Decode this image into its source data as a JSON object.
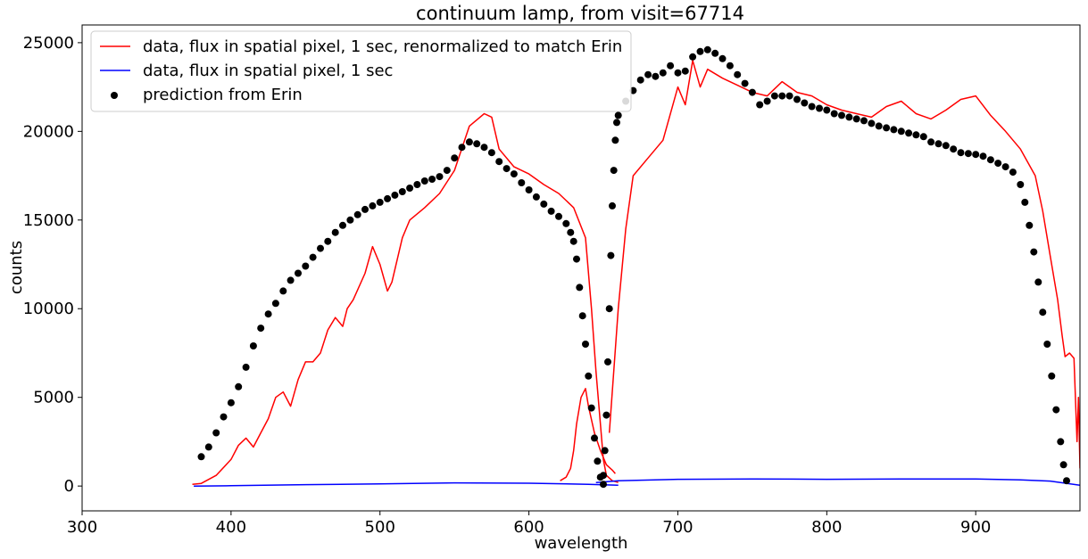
{
  "chart_data": {
    "type": "line",
    "title": "continuum lamp, from visit=67714",
    "xlabel": "wavelength",
    "ylabel": "counts",
    "xlim": [
      300,
      970
    ],
    "ylim": [
      -1400,
      26000
    ],
    "xticks": [
      300,
      400,
      500,
      600,
      700,
      800,
      900
    ],
    "yticks": [
      0,
      5000,
      10000,
      15000,
      20000,
      25000
    ],
    "grid": false,
    "legend_position": "top-left",
    "series": [
      {
        "name": "data, flux in spatial pixel, 1 sec, renormalized to match Erin",
        "style": "line",
        "color": "#ff0000",
        "segments": [
          [
            [
              374,
              100
            ],
            [
              380,
              150
            ],
            [
              390,
              600
            ],
            [
              400,
              1500
            ],
            [
              405,
              2300
            ],
            [
              410,
              2700
            ],
            [
              415,
              2200
            ],
            [
              420,
              3000
            ],
            [
              425,
              3800
            ],
            [
              430,
              5000
            ],
            [
              435,
              5300
            ],
            [
              440,
              4500
            ],
            [
              445,
              6000
            ],
            [
              450,
              7000
            ],
            [
              455,
              7000
            ],
            [
              460,
              7500
            ],
            [
              465,
              8800
            ],
            [
              470,
              9500
            ],
            [
              475,
              9000
            ],
            [
              478,
              10000
            ],
            [
              482,
              10500
            ],
            [
              490,
              12000
            ],
            [
              495,
              13500
            ],
            [
              500,
              12500
            ],
            [
              505,
              11000
            ],
            [
              508,
              11500
            ],
            [
              515,
              14000
            ],
            [
              520,
              15000
            ],
            [
              530,
              15700
            ],
            [
              540,
              16500
            ],
            [
              550,
              17800
            ],
            [
              560,
              20300
            ],
            [
              570,
              21000
            ],
            [
              575,
              20800
            ],
            [
              580,
              19000
            ],
            [
              590,
              18000
            ],
            [
              600,
              17600
            ],
            [
              610,
              17000
            ],
            [
              620,
              16500
            ],
            [
              630,
              15700
            ],
            [
              638,
              14000
            ],
            [
              642,
              10000
            ],
            [
              645,
              6500
            ],
            [
              648,
              3500
            ],
            [
              650,
              1500
            ],
            [
              652,
              600
            ],
            [
              656,
              300
            ],
            [
              660,
              200
            ]
          ],
          [
            [
              621,
              300
            ],
            [
              625,
              500
            ],
            [
              628,
              1000
            ],
            [
              630,
              2000
            ],
            [
              632,
              3500
            ],
            [
              635,
              5000
            ],
            [
              638,
              5500
            ],
            [
              640,
              4500
            ],
            [
              644,
              3000
            ],
            [
              648,
              2000
            ],
            [
              652,
              1200
            ],
            [
              656,
              900
            ],
            [
              658,
              700
            ]
          ],
          [
            [
              654,
              3000
            ],
            [
              660,
              10000
            ],
            [
              665,
              14500
            ],
            [
              670,
              17500
            ],
            [
              680,
              18500
            ],
            [
              690,
              19500
            ],
            [
              700,
              22500
            ],
            [
              705,
              21500
            ],
            [
              710,
              24000
            ],
            [
              715,
              22500
            ],
            [
              720,
              23500
            ],
            [
              730,
              23000
            ],
            [
              740,
              22600
            ],
            [
              750,
              22200
            ],
            [
              760,
              22000
            ],
            [
              770,
              22800
            ],
            [
              780,
              22200
            ],
            [
              790,
              22000
            ],
            [
              800,
              21500
            ],
            [
              810,
              21200
            ],
            [
              820,
              21000
            ],
            [
              830,
              20800
            ],
            [
              840,
              21400
            ],
            [
              850,
              21700
            ],
            [
              860,
              21000
            ],
            [
              870,
              20700
            ],
            [
              880,
              21200
            ],
            [
              890,
              21800
            ],
            [
              900,
              22000
            ],
            [
              910,
              20900
            ],
            [
              920,
              20000
            ],
            [
              930,
              19000
            ],
            [
              940,
              17500
            ],
            [
              945,
              15500
            ],
            [
              950,
              13000
            ],
            [
              955,
              10500
            ],
            [
              958,
              8500
            ],
            [
              960,
              7300
            ],
            [
              963,
              7500
            ],
            [
              966,
              7200
            ],
            [
              968,
              2500
            ],
            [
              969,
              5000
            ],
            [
              970,
              1000
            ]
          ]
        ]
      },
      {
        "name": "data, flux in spatial pixel, 1 sec",
        "style": "line",
        "color": "#0000ff",
        "segments": [
          [
            [
              375,
              0
            ],
            [
              400,
              20
            ],
            [
              450,
              80
            ],
            [
              500,
              120
            ],
            [
              550,
              180
            ],
            [
              600,
              160
            ],
            [
              640,
              100
            ],
            [
              660,
              50
            ]
          ],
          [
            [
              645,
              200
            ],
            [
              660,
              300
            ],
            [
              700,
              380
            ],
            [
              750,
              400
            ],
            [
              800,
              380
            ],
            [
              850,
              400
            ],
            [
              900,
              400
            ],
            [
              930,
              350
            ],
            [
              950,
              280
            ],
            [
              970,
              50
            ]
          ]
        ]
      },
      {
        "name": "prediction from Erin",
        "style": "scatter",
        "color": "#000000",
        "points": [
          [
            380,
            1650
          ],
          [
            385,
            2200
          ],
          [
            390,
            3000
          ],
          [
            395,
            3900
          ],
          [
            400,
            4700
          ],
          [
            405,
            5600
          ],
          [
            410,
            6700
          ],
          [
            415,
            7900
          ],
          [
            420,
            8900
          ],
          [
            425,
            9700
          ],
          [
            430,
            10300
          ],
          [
            435,
            11000
          ],
          [
            440,
            11600
          ],
          [
            445,
            12000
          ],
          [
            450,
            12400
          ],
          [
            455,
            12900
          ],
          [
            460,
            13400
          ],
          [
            465,
            13800
          ],
          [
            470,
            14300
          ],
          [
            475,
            14700
          ],
          [
            480,
            15000
          ],
          [
            485,
            15300
          ],
          [
            490,
            15600
          ],
          [
            495,
            15800
          ],
          [
            500,
            16000
          ],
          [
            505,
            16200
          ],
          [
            510,
            16400
          ],
          [
            515,
            16600
          ],
          [
            520,
            16800
          ],
          [
            525,
            17000
          ],
          [
            530,
            17200
          ],
          [
            535,
            17300
          ],
          [
            540,
            17450
          ],
          [
            545,
            17800
          ],
          [
            550,
            18500
          ],
          [
            555,
            19100
          ],
          [
            560,
            19400
          ],
          [
            565,
            19300
          ],
          [
            570,
            19100
          ],
          [
            575,
            18800
          ],
          [
            580,
            18300
          ],
          [
            585,
            17900
          ],
          [
            590,
            17600
          ],
          [
            595,
            17100
          ],
          [
            600,
            16700
          ],
          [
            605,
            16300
          ],
          [
            610,
            15900
          ],
          [
            615,
            15500
          ],
          [
            620,
            15200
          ],
          [
            625,
            14800
          ],
          [
            628,
            14300
          ],
          [
            630,
            13800
          ],
          [
            632,
            12800
          ],
          [
            634,
            11200
          ],
          [
            636,
            9600
          ],
          [
            638,
            8000
          ],
          [
            640,
            6200
          ],
          [
            642,
            4400
          ],
          [
            644,
            2700
          ],
          [
            646,
            1400
          ],
          [
            648,
            500
          ],
          [
            650,
            100
          ],
          [
            650,
            600
          ],
          [
            651,
            2000
          ],
          [
            652,
            4000
          ],
          [
            653,
            7000
          ],
          [
            654,
            10000
          ],
          [
            655,
            13000
          ],
          [
            656,
            15800
          ],
          [
            657,
            17800
          ],
          [
            658,
            19500
          ],
          [
            659,
            20500
          ],
          [
            660,
            20900
          ],
          [
            665,
            21700
          ],
          [
            670,
            22300
          ],
          [
            675,
            22900
          ],
          [
            680,
            23200
          ],
          [
            685,
            23100
          ],
          [
            690,
            23300
          ],
          [
            695,
            23700
          ],
          [
            700,
            23300
          ],
          [
            705,
            23400
          ],
          [
            710,
            24200
          ],
          [
            715,
            24500
          ],
          [
            720,
            24600
          ],
          [
            725,
            24400
          ],
          [
            730,
            24100
          ],
          [
            735,
            23700
          ],
          [
            740,
            23200
          ],
          [
            745,
            22700
          ],
          [
            750,
            22200
          ],
          [
            755,
            21500
          ],
          [
            760,
            21700
          ],
          [
            765,
            22000
          ],
          [
            770,
            22000
          ],
          [
            775,
            22000
          ],
          [
            780,
            21800
          ],
          [
            785,
            21600
          ],
          [
            790,
            21400
          ],
          [
            795,
            21300
          ],
          [
            800,
            21200
          ],
          [
            805,
            21000
          ],
          [
            810,
            20900
          ],
          [
            815,
            20800
          ],
          [
            820,
            20700
          ],
          [
            825,
            20600
          ],
          [
            830,
            20450
          ],
          [
            835,
            20300
          ],
          [
            840,
            20200
          ],
          [
            845,
            20100
          ],
          [
            850,
            20000
          ],
          [
            855,
            19900
          ],
          [
            860,
            19800
          ],
          [
            865,
            19700
          ],
          [
            870,
            19400
          ],
          [
            875,
            19300
          ],
          [
            880,
            19200
          ],
          [
            885,
            19000
          ],
          [
            890,
            18800
          ],
          [
            895,
            18750
          ],
          [
            900,
            18700
          ],
          [
            905,
            18600
          ],
          [
            910,
            18400
          ],
          [
            915,
            18200
          ],
          [
            920,
            18000
          ],
          [
            925,
            17700
          ],
          [
            930,
            17000
          ],
          [
            933,
            16000
          ],
          [
            936,
            14700
          ],
          [
            939,
            13200
          ],
          [
            942,
            11500
          ],
          [
            945,
            9800
          ],
          [
            948,
            8000
          ],
          [
            951,
            6200
          ],
          [
            954,
            4300
          ],
          [
            957,
            2500
          ],
          [
            959,
            1200
          ],
          [
            961,
            300
          ]
        ]
      }
    ]
  }
}
